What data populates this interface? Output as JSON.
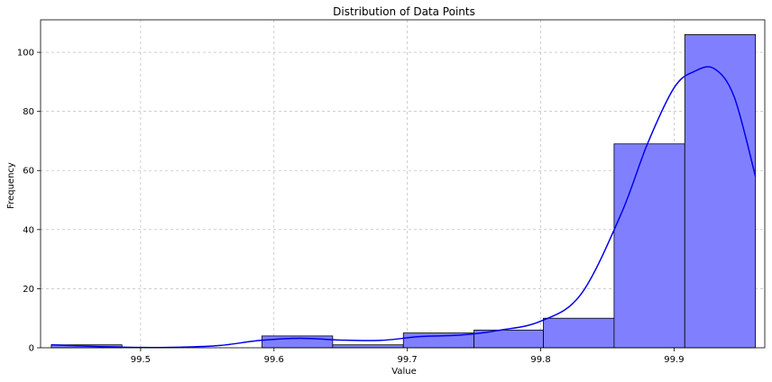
{
  "chart_data": {
    "type": "bar",
    "title": "Distribution of Data Points",
    "xlabel": "Value",
    "ylabel": "Frequency",
    "bin_edges": [
      99.433,
      99.486,
      99.538,
      99.591,
      99.644,
      99.697,
      99.75,
      99.802,
      99.855,
      99.908,
      99.961
    ],
    "values": [
      1,
      0,
      0,
      4,
      1,
      5,
      6,
      10,
      69,
      106
    ],
    "kde": {
      "x": [
        99.433,
        99.47,
        99.5,
        99.53,
        99.56,
        99.59,
        99.62,
        99.65,
        99.68,
        99.71,
        99.74,
        99.77,
        99.8,
        99.83,
        99.86,
        99.88,
        99.9,
        99.915,
        99.93,
        99.945,
        99.961
      ],
      "y": [
        1,
        0.4,
        0.1,
        0.2,
        0.8,
        2.5,
        3.2,
        2.6,
        2.5,
        3.8,
        4.3,
        6,
        9,
        18,
        45,
        69,
        88,
        93.5,
        94.5,
        85,
        58
      ]
    },
    "xlim": [
      99.425,
      99.968
    ],
    "ylim": [
      0,
      111
    ],
    "xticks": [
      99.5,
      99.6,
      99.7,
      99.8,
      99.9
    ],
    "xtick_labels": [
      "99.5",
      "99.6",
      "99.7",
      "99.8",
      "99.9"
    ],
    "yticks": [
      0,
      20,
      40,
      60,
      80,
      100
    ],
    "ytick_labels": [
      "0",
      "20",
      "40",
      "60",
      "80",
      "100"
    ],
    "grid": true,
    "colors": {
      "bar_fill": "#8080ff",
      "bar_edge": "#000000",
      "kde_line": "#0000ee",
      "grid": "#b0b0b0"
    }
  }
}
